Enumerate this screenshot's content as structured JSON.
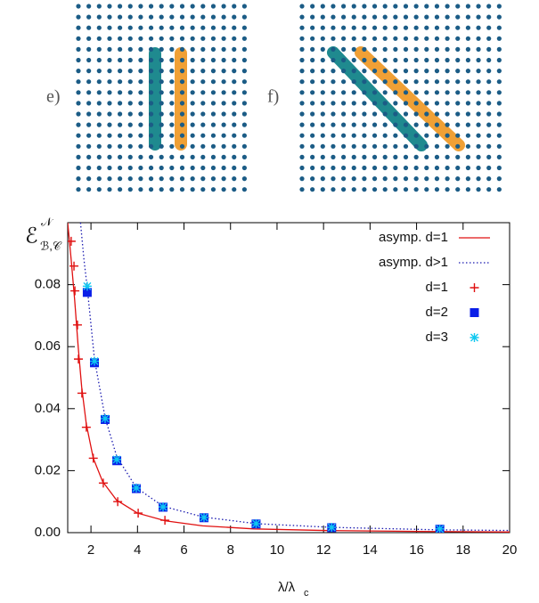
{
  "panel_labels": [
    "e)",
    "f)"
  ],
  "chart_data": {
    "type": "scatter",
    "xlabel": {
      "base": "λ/λ",
      "sub": "c"
    },
    "ylabel": {
      "base": "ℰ",
      "sup": "𝒩",
      "sub": "ℬ,𝒞"
    },
    "xlim": [
      1,
      20
    ],
    "ylim": [
      0,
      0.1
    ],
    "xticks": [
      2,
      4,
      6,
      8,
      10,
      12,
      14,
      16,
      18,
      20
    ],
    "yticks": [
      {
        "value": 0,
        "label": "0.00"
      },
      0.02,
      0.04,
      0.06,
      0.08
    ],
    "legend": "top-right",
    "series": [
      {
        "name": "asymp. d=1",
        "style": "line",
        "color": "#e01010",
        "x": [
          1,
          1.15,
          1.3,
          1.45,
          1.6,
          1.8,
          2.1,
          2.5,
          3.1,
          4,
          5.2,
          6.8,
          9,
          12,
          16,
          20
        ],
        "values": [
          0.1,
          0.088,
          0.075,
          0.06,
          0.047,
          0.035,
          0.024,
          0.0165,
          0.0105,
          0.0063,
          0.0038,
          0.0022,
          0.0012,
          0.0007,
          0.0004,
          0.0002
        ]
      },
      {
        "name": "asymp. d>1",
        "style": "dotted",
        "color": "#1a1ab0",
        "x": [
          1.55,
          1.7,
          1.84,
          2.15,
          2.61,
          3.11,
          3.95,
          5.1,
          6.86,
          9.1,
          12.35,
          17,
          20
        ],
        "values": [
          0.1,
          0.088,
          0.079,
          0.056,
          0.037,
          0.0245,
          0.0145,
          0.0085,
          0.005,
          0.0029,
          0.0017,
          0.0009,
          0.0007
        ]
      },
      {
        "name": "d=1",
        "style": "plus",
        "color": "#e01010",
        "x": [
          1.15,
          1.27,
          1.31,
          1.42,
          1.46,
          1.61,
          1.8,
          2.1,
          2.53,
          3.15,
          4.03,
          5.18
        ],
        "values": [
          0.094,
          0.086,
          0.078,
          0.067,
          0.056,
          0.045,
          0.034,
          0.024,
          0.016,
          0.01,
          0.0063,
          0.004
        ]
      },
      {
        "name": "d=2",
        "style": "square",
        "color": "#0a1ee8",
        "x": [
          1.84,
          2.15,
          2.61,
          3.11,
          3.95,
          5.1,
          6.86,
          9.1,
          12.35,
          17
        ],
        "values": [
          0.0775,
          0.0548,
          0.0365,
          0.0232,
          0.0142,
          0.0082,
          0.0048,
          0.0028,
          0.0016,
          0.0011
        ]
      },
      {
        "name": "d=3",
        "style": "asterisk",
        "color": "#10c8f0",
        "x": [
          1.84,
          2.15,
          2.61,
          3.11,
          3.95,
          5.1,
          6.86,
          9.1,
          12.35,
          17
        ],
        "values": [
          0.0795,
          0.0553,
          0.0368,
          0.0236,
          0.0144,
          0.0083,
          0.0049,
          0.0029,
          0.0017,
          0.0012
        ]
      }
    ]
  }
}
